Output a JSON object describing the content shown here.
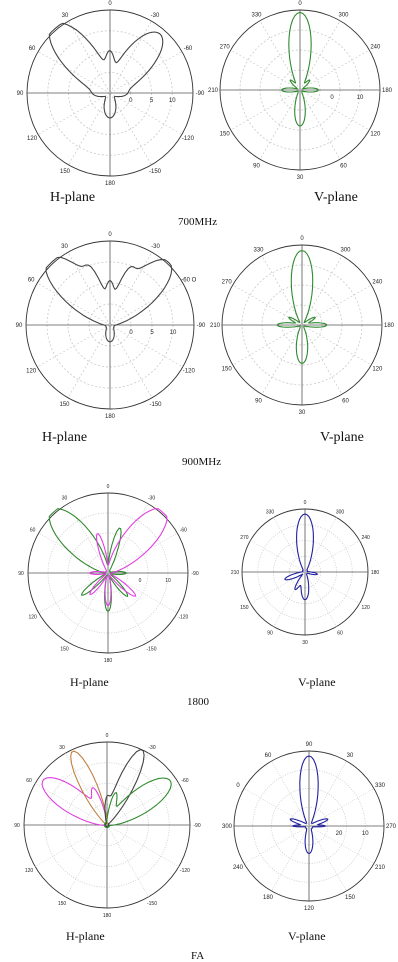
{
  "colors": {
    "grid": "#c9c9c9",
    "axis": "#555555",
    "black": "#444444",
    "green": "#2f8a2f",
    "magenta": "#e040e0",
    "blue": "#2020a0",
    "orange": "#c08040",
    "red": "#c02020"
  },
  "rows": [
    {
      "caption": "700MHz"
    },
    {
      "caption": "900MHz"
    },
    {
      "caption": "1800"
    },
    {
      "caption": "FA"
    }
  ],
  "chart_data": [
    {
      "type": "polar",
      "title": "H-plane",
      "row": 0,
      "angle_labels": [
        "0",
        "30",
        "-30",
        "60",
        "-60",
        "90",
        "-90",
        "120",
        "-120",
        "150",
        "-150",
        "180"
      ],
      "radial_labels": [
        "0",
        "5",
        "10"
      ],
      "rmax": 10,
      "series": [
        {
          "color": "black",
          "lobes": [
            {
              "az": -40,
              "w": 26,
              "r": 10.2
            },
            {
              "az": 40,
              "w": 26,
              "r": 8.8
            },
            {
              "az": 0,
              "w": 10,
              "r": 3.2
            },
            {
              "az": 180,
              "w": 30,
              "r": 2.5
            },
            {
              "az": -90,
              "w": 25,
              "r": 1.5
            },
            {
              "az": 90,
              "w": 25,
              "r": 1.5
            }
          ],
          "base": 0.5
        }
      ]
    },
    {
      "type": "polar",
      "title": "V-plane",
      "row": 0,
      "angle_labels": [
        "0",
        "330",
        "300",
        "270",
        "240",
        "210",
        "180",
        "150",
        "120",
        "90",
        "60",
        "30"
      ],
      "radial_labels": [
        "0",
        "10"
      ],
      "rmax": 10,
      "series": [
        {
          "color": "green",
          "lobes": [
            {
              "az": 0,
              "w": 20,
              "r": 9.4
            },
            {
              "az": 180,
              "w": 20,
              "r": 4.2
            },
            {
              "az": 90,
              "w": 14,
              "r": 2.0
            },
            {
              "az": -90,
              "w": 14,
              "r": 2.0
            },
            {
              "az": 45,
              "w": 10,
              "r": 1.4
            },
            {
              "az": -45,
              "w": 10,
              "r": 1.4
            }
          ],
          "base": 0.3
        }
      ]
    },
    {
      "type": "polar",
      "title": "H-plane",
      "row": 1,
      "angle_labels": [
        "0",
        "30",
        "-30",
        "60",
        "-60 O",
        "90",
        "-90",
        "120",
        "-120",
        "150",
        "-150",
        "180"
      ],
      "radial_labels": [
        "0",
        "5",
        "10"
      ],
      "rmax": 10,
      "series": [
        {
          "color": "black",
          "lobes": [
            {
              "az": -43,
              "w": 25,
              "r": 10.3
            },
            {
              "az": 43,
              "w": 25,
              "r": 9.8
            },
            {
              "az": 0,
              "w": 10,
              "r": 4.0
            },
            {
              "az": -18,
              "w": 8,
              "r": 3.2
            },
            {
              "az": 18,
              "w": 8,
              "r": 3.2
            },
            {
              "az": 180,
              "w": 30,
              "r": 1.5
            }
          ],
          "base": 0.5
        }
      ]
    },
    {
      "type": "polar",
      "title": "V-plane",
      "row": 1,
      "angle_labels": [
        "0",
        "330",
        "300",
        "270",
        "240",
        "210",
        "180",
        "150",
        "120",
        "90",
        "60",
        "30"
      ],
      "radial_labels": [],
      "rmax": 10,
      "series": [
        {
          "color": "green",
          "lobes": [
            {
              "az": 0,
              "w": 20,
              "r": 9.0
            },
            {
              "az": 180,
              "w": 20,
              "r": 4.5
            },
            {
              "az": 90,
              "w": 12,
              "r": 2.8
            },
            {
              "az": -90,
              "w": 12,
              "r": 2.8
            },
            {
              "az": 60,
              "w": 10,
              "r": 1.6
            },
            {
              "az": -60,
              "w": 10,
              "r": 1.6
            }
          ],
          "base": 0.3
        }
      ]
    },
    {
      "type": "polar",
      "title": "H-plane",
      "row": 2,
      "angle_labels": [
        "0",
        "30",
        "-30",
        "60",
        "-60",
        "90",
        "-90",
        "120",
        "-120",
        "150",
        "-150",
        "180"
      ],
      "radial_labels": [
        "0",
        "10"
      ],
      "rmax": 10,
      "series": [
        {
          "color": "green",
          "lobes": [
            {
              "az": -42,
              "w": 24,
              "r": 10.2
            },
            {
              "az": 15,
              "w": 10,
              "r": 5.5
            },
            {
              "az": 180,
              "w": 12,
              "r": 4.5
            },
            {
              "az": -130,
              "w": 10,
              "r": 4.0
            },
            {
              "az": 140,
              "w": 10,
              "r": 3.5
            },
            {
              "az": 90,
              "w": 10,
              "r": 2.0
            }
          ],
          "base": 0.3
        },
        {
          "color": "magenta",
          "lobes": [
            {
              "az": 42,
              "w": 24,
              "r": 10.3
            },
            {
              "az": -15,
              "w": 10,
              "r": 4.8
            },
            {
              "az": 180,
              "w": 12,
              "r": 3.8
            },
            {
              "az": 130,
              "w": 10,
              "r": 4.2
            },
            {
              "az": -140,
              "w": 10,
              "r": 3.2
            },
            {
              "az": -90,
              "w": 10,
              "r": 2.0
            }
          ],
          "base": 0.3
        }
      ]
    },
    {
      "type": "polar",
      "title": "V-plane",
      "row": 2,
      "angle_labels": [
        "0",
        "330",
        "300",
        "270",
        "240",
        "210",
        "180",
        "150",
        "120",
        "90",
        "60",
        "30"
      ],
      "radial_labels": [],
      "rmax": 10,
      "series": [
        {
          "color": "blue",
          "lobes": [
            {
              "az": 0,
              "w": 20,
              "r": 8.8
            },
            {
              "az": 180,
              "w": 18,
              "r": 4.0
            },
            {
              "az": -110,
              "w": 12,
              "r": 3.0
            },
            {
              "az": -150,
              "w": 10,
              "r": 2.6
            },
            {
              "az": 100,
              "w": 10,
              "r": 1.6
            }
          ],
          "base": 0.4
        }
      ]
    },
    {
      "type": "polar",
      "title": "H-plane",
      "row": 3,
      "angle_labels": [
        "0",
        "30",
        "-30",
        "60",
        "-60",
        "90",
        "-90",
        "120",
        "-120",
        "150",
        "-150",
        "180"
      ],
      "radial_labels": [],
      "rmax": 10,
      "series": [
        {
          "color": "magenta",
          "lobes": [
            {
              "az": -55,
              "w": 22,
              "r": 9.2
            },
            {
              "az": -20,
              "w": 10,
              "r": 4.0
            }
          ],
          "base": 0.2
        },
        {
          "color": "orange",
          "lobes": [
            {
              "az": -25,
              "w": 14,
              "r": 9.6
            }
          ],
          "base": 0.2
        },
        {
          "color": "black",
          "lobes": [
            {
              "az": 25,
              "w": 14,
              "r": 9.8
            },
            {
              "az": 0,
              "w": 10,
              "r": 3.0
            }
          ],
          "base": 0.2
        },
        {
          "color": "green",
          "lobes": [
            {
              "az": 55,
              "w": 22,
              "r": 9.0
            },
            {
              "az": 15,
              "w": 10,
              "r": 3.5
            }
          ],
          "base": 0.3
        }
      ]
    },
    {
      "type": "polar",
      "title": "V-plane",
      "row": 3,
      "angle_labels": [
        "90",
        "60",
        "30",
        "0",
        "330",
        "300",
        "270",
        "240",
        "210",
        "180",
        "150",
        "120"
      ],
      "radial_labels": [
        "20",
        "10"
      ],
      "rmax": 30,
      "series": [
        {
          "color": "blue",
          "lobes": [
            {
              "az": 0,
              "w": 18,
              "r": 26.5
            },
            {
              "az": 180,
              "w": 18,
              "r": 9.5
            },
            {
              "az": 70,
              "w": 10,
              "r": 6.5
            },
            {
              "az": -70,
              "w": 10,
              "r": 6.5
            },
            {
              "az": 90,
              "w": 6,
              "r": 5.0
            },
            {
              "az": -90,
              "w": 6,
              "r": 5.0
            }
          ],
          "base": 1.5
        }
      ]
    }
  ]
}
